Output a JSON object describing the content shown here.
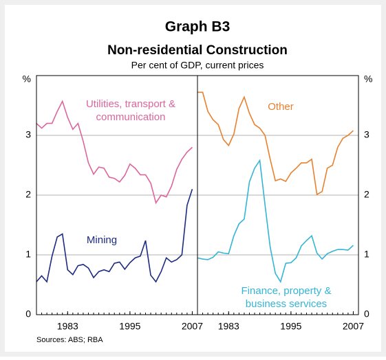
{
  "title": "Graph B3",
  "subtitle": "Non-residential Construction",
  "note": "Per cent of GDP, current prices",
  "source": "Sources: ABS; RBA",
  "chart_data": [
    {
      "type": "line",
      "y_label": "%",
      "x": [
        1977,
        1978,
        1979,
        1980,
        1981,
        1982,
        1983,
        1984,
        1985,
        1986,
        1987,
        1988,
        1989,
        1990,
        1991,
        1992,
        1993,
        1994,
        1995,
        1996,
        1997,
        1998,
        1999,
        2000,
        2001,
        2002,
        2003,
        2004,
        2005,
        2006,
        2007
      ],
      "xlim": [
        1977,
        2008
      ],
      "xticks": [
        1983,
        1995,
        2007
      ],
      "ylim": [
        0,
        4
      ],
      "yticks": [
        0,
        1,
        2,
        3
      ],
      "grid": true,
      "series": [
        {
          "name": [
            "Utilities, transport &",
            "communication"
          ],
          "color": "#dc659c",
          "values": [
            3.2,
            3.12,
            3.2,
            3.2,
            3.4,
            3.57,
            3.3,
            3.1,
            3.2,
            2.9,
            2.54,
            2.35,
            2.47,
            2.45,
            2.3,
            2.28,
            2.22,
            2.33,
            2.52,
            2.45,
            2.34,
            2.34,
            2.2,
            1.87,
            2.0,
            1.97,
            2.15,
            2.43,
            2.6,
            2.72,
            2.8
          ]
        },
        {
          "name": [
            "Mining"
          ],
          "color": "#1c2a80",
          "values": [
            0.55,
            0.65,
            0.55,
            0.98,
            1.3,
            1.35,
            0.75,
            0.67,
            0.82,
            0.84,
            0.78,
            0.62,
            0.72,
            0.75,
            0.72,
            0.86,
            0.88,
            0.76,
            0.87,
            0.95,
            0.98,
            1.24,
            0.66,
            0.55,
            0.72,
            0.95,
            0.88,
            0.92,
            1.0,
            1.83,
            2.1
          ]
        }
      ]
    },
    {
      "type": "line",
      "y_label": "%",
      "x": [
        1977,
        1978,
        1979,
        1980,
        1981,
        1982,
        1983,
        1984,
        1985,
        1986,
        1987,
        1988,
        1989,
        1990,
        1991,
        1992,
        1993,
        1994,
        1995,
        1996,
        1997,
        1998,
        1999,
        2000,
        2001,
        2002,
        2003,
        2004,
        2005,
        2006,
        2007
      ],
      "xlim": [
        1977,
        2008
      ],
      "xticks": [
        1983,
        1995,
        2007
      ],
      "ylim": [
        0,
        4
      ],
      "yticks": [
        0,
        1,
        2,
        3
      ],
      "grid": true,
      "series": [
        {
          "name": [
            "Other"
          ],
          "color": "#e8802e",
          "values": [
            3.72,
            3.72,
            3.4,
            3.26,
            3.18,
            2.93,
            2.83,
            3.02,
            3.45,
            3.64,
            3.37,
            3.18,
            3.12,
            3.0,
            2.6,
            2.24,
            2.27,
            2.23,
            2.37,
            2.45,
            2.54,
            2.54,
            2.6,
            2.01,
            2.06,
            2.45,
            2.5,
            2.8,
            2.95,
            3.0,
            3.08
          ]
        },
        {
          "name": [
            "Finance, property &",
            "business services"
          ],
          "color": "#33b5d5",
          "values": [
            0.95,
            0.93,
            0.92,
            0.96,
            1.05,
            1.03,
            1.02,
            1.32,
            1.52,
            1.6,
            2.22,
            2.45,
            2.58,
            1.84,
            1.13,
            0.69,
            0.55,
            0.86,
            0.87,
            0.95,
            1.15,
            1.24,
            1.32,
            1.03,
            0.93,
            1.02,
            1.06,
            1.09,
            1.09,
            1.08,
            1.16
          ]
        }
      ]
    }
  ]
}
